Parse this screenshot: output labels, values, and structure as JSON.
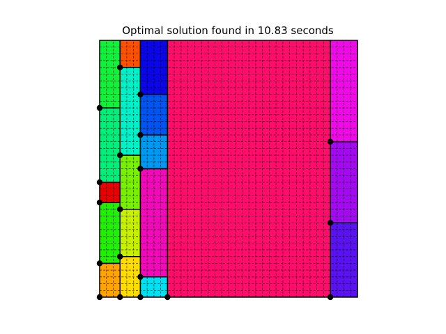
{
  "title": "Optimal solution found in 10.83 seconds",
  "figure": {
    "grid_size": {
      "cols": 38,
      "rows": 38
    },
    "cell_outline": "#000000",
    "grid_line_style": "dashed",
    "rectangles": [
      {
        "id": "r1",
        "color": "#ff0d6a",
        "x0": 10,
        "y0": 0,
        "x1": 34,
        "y1": 38
      },
      {
        "id": "r2",
        "color": "#11f03a",
        "x0": 0,
        "y0": 28,
        "x1": 3,
        "y1": 38
      },
      {
        "id": "r3",
        "color": "#00ef7a",
        "x0": 0,
        "y0": 17,
        "x1": 3,
        "y1": 28
      },
      {
        "id": "r4",
        "color": "#e80000",
        "x0": 0,
        "y0": 14,
        "x1": 3,
        "y1": 17
      },
      {
        "id": "r5",
        "color": "#22ef04",
        "x0": 0,
        "y0": 5,
        "x1": 3,
        "y1": 14
      },
      {
        "id": "r6",
        "color": "#ffa300",
        "x0": 0,
        "y0": 0,
        "x1": 3,
        "y1": 5
      },
      {
        "id": "r7",
        "color": "#ff4f00",
        "x0": 3,
        "y0": 34,
        "x1": 6,
        "y1": 38
      },
      {
        "id": "r8",
        "color": "#00f0c8",
        "x0": 3,
        "y0": 21,
        "x1": 6,
        "y1": 34
      },
      {
        "id": "r9",
        "color": "#78f000",
        "x0": 3,
        "y0": 13,
        "x1": 6,
        "y1": 21
      },
      {
        "id": "r10",
        "color": "#c6f000",
        "x0": 3,
        "y0": 6,
        "x1": 6,
        "y1": 13
      },
      {
        "id": "r11",
        "color": "#ffdd00",
        "x0": 3,
        "y0": 0,
        "x1": 6,
        "y1": 6
      },
      {
        "id": "r12",
        "color": "#0b06e8",
        "x0": 6,
        "y0": 30,
        "x1": 10,
        "y1": 38
      },
      {
        "id": "r13",
        "color": "#0055f0",
        "x0": 6,
        "y0": 24,
        "x1": 10,
        "y1": 30
      },
      {
        "id": "r14",
        "color": "#0098f0",
        "x0": 6,
        "y0": 19,
        "x1": 10,
        "y1": 24
      },
      {
        "id": "r15",
        "color": "#f00ab8",
        "x0": 6,
        "y0": 3,
        "x1": 10,
        "y1": 19
      },
      {
        "id": "r16",
        "color": "#00e0f0",
        "x0": 6,
        "y0": 0,
        "x1": 10,
        "y1": 3
      },
      {
        "id": "r17",
        "color": "#f00ae8",
        "x0": 34,
        "y0": 23,
        "x1": 38,
        "y1": 38
      },
      {
        "id": "r18",
        "color": "#a40af0",
        "x0": 34,
        "y0": 11,
        "x1": 38,
        "y1": 23
      },
      {
        "id": "r19",
        "color": "#5a12f0",
        "x0": 34,
        "y0": 0,
        "x1": 38,
        "y1": 11
      }
    ],
    "corner_dots": [
      [
        0,
        0
      ],
      [
        3,
        0
      ],
      [
        6,
        0
      ],
      [
        10,
        0
      ],
      [
        34,
        0
      ],
      [
        0,
        5
      ],
      [
        3,
        6
      ],
      [
        6,
        3
      ],
      [
        3,
        13
      ],
      [
        0,
        14
      ],
      [
        0,
        17
      ],
      [
        6,
        19
      ],
      [
        3,
        21
      ],
      [
        6,
        24
      ],
      [
        0,
        28
      ],
      [
        6,
        30
      ],
      [
        3,
        34
      ],
      [
        34,
        11
      ],
      [
        34,
        23
      ]
    ]
  }
}
